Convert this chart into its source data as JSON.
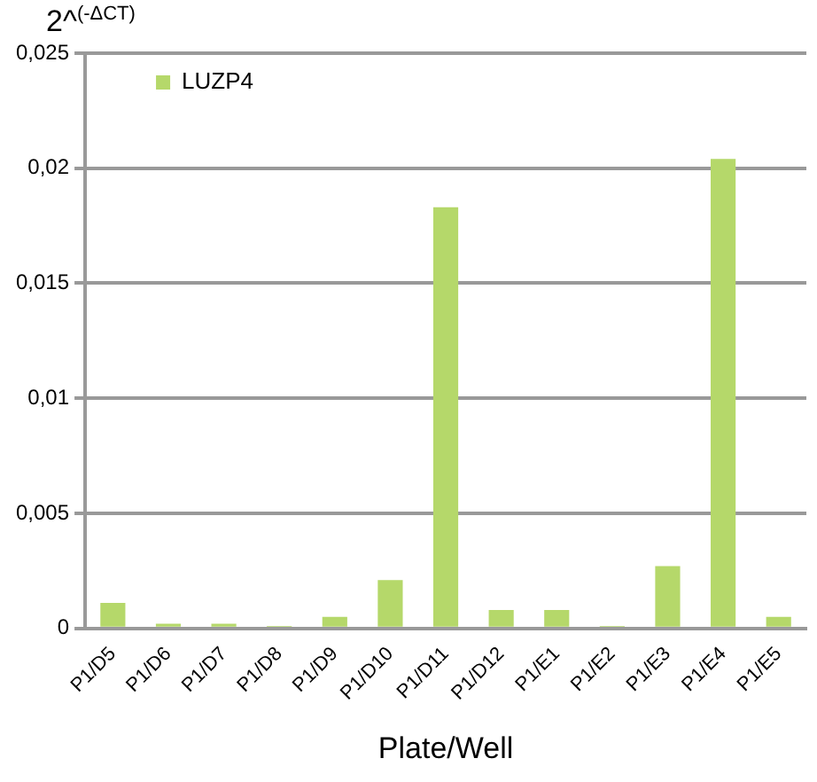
{
  "chart_data": {
    "type": "bar",
    "ylabel": "2^$^{(-ΔCT)}$",
    "xlabel": "Plate/Well",
    "categories": [
      "P1/D5",
      "P1/D6",
      "P1/D7",
      "P1/D8",
      "P1/D9",
      "P1/D10",
      "P1/D11",
      "P1/D12",
      "P1/E1",
      "P1/E2",
      "P1/E3",
      "P1/E4",
      "P1/E5"
    ],
    "series": [
      {
        "name": "LUZP4",
        "color": "#b5d86a",
        "values": [
          0.0011,
          0.0002,
          0.0002,
          0.0001,
          0.0005,
          0.0021,
          0.0183,
          0.0008,
          0.0008,
          0.0001,
          0.0027,
          0.0204,
          0.0005
        ]
      }
    ],
    "ylim": [
      0,
      0.025
    ],
    "yticks": [
      0,
      {
        "value": 0.005,
        "label": "0,005"
      },
      {
        "value": 0.01,
        "label": "0,01"
      },
      {
        "value": 0.015,
        "label": "0,015"
      },
      {
        "value": 0.02,
        "label": "0,02"
      },
      {
        "value": 0.025,
        "label": "0,025"
      }
    ],
    "grid": "y",
    "legend": "top left"
  }
}
